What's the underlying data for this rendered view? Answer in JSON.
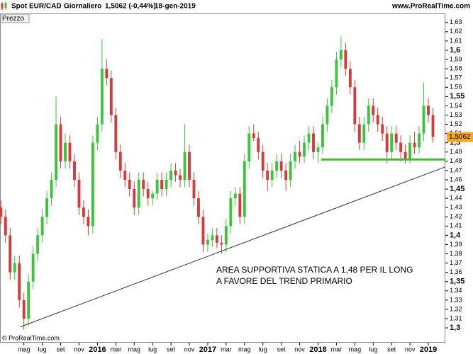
{
  "chart_data": {
    "type": "candlestick",
    "header": {
      "symbol": "Spot EUR/CAD",
      "period": "Giornaliero",
      "quote": "1,5062 (-0,44%)",
      "date": "18-gen-2019",
      "site": "www.ProRealTime.com"
    },
    "panel_label": "Prezzo",
    "copyright": "© ProRealTime.com",
    "annotation": [
      "AREA SUPPORTIVA STATICA A 1,48 PER IL LONG",
      "A FAVORE DEL TREND PRIMARIO"
    ],
    "colors": {
      "up": "#3cc43c",
      "down": "#d23c3c",
      "support": "#3cbf2c",
      "trend": "#333333",
      "tag": "#f5a623"
    },
    "last_price": {
      "value": 1.5062,
      "label": "1,5062"
    },
    "support_line": {
      "y": 1.482,
      "x_start": 32.35
    },
    "trend_line": {
      "x": [
        -0.4,
        45.85
      ],
      "y": [
        1.301,
        1.474
      ]
    },
    "xlim": [
      -2.6,
      45.85
    ],
    "xticks": [
      {
        "value": 0,
        "label": "mag"
      },
      {
        "value": 2,
        "label": "lug"
      },
      {
        "value": 4,
        "label": "set"
      },
      {
        "value": 6,
        "label": "nov"
      },
      {
        "value": 8,
        "label": "2016"
      },
      {
        "value": 10,
        "label": "mar"
      },
      {
        "value": 12,
        "label": "mag"
      },
      {
        "value": 14,
        "label": "lug"
      },
      {
        "value": 16,
        "label": "set"
      },
      {
        "value": 18,
        "label": "nov"
      },
      {
        "value": 20,
        "label": "2017"
      },
      {
        "value": 22,
        "label": "mar"
      },
      {
        "value": 24,
        "label": "mag"
      },
      {
        "value": 26,
        "label": "lug"
      },
      {
        "value": 28,
        "label": "set"
      },
      {
        "value": 30,
        "label": "nov"
      },
      {
        "value": 32,
        "label": "2018"
      },
      {
        "value": 34,
        "label": "mar"
      },
      {
        "value": 36,
        "label": "mag"
      },
      {
        "value": 38,
        "label": "lug"
      },
      {
        "value": 40,
        "label": "set"
      },
      {
        "value": 42,
        "label": "nov"
      },
      {
        "value": 44,
        "label": "2019"
      }
    ],
    "ylim": [
      1.284,
      1.639
    ],
    "yticks": [
      {
        "value": 1.3,
        "label": "1,3"
      },
      {
        "value": 1.31,
        "label": "1,31"
      },
      {
        "value": 1.32,
        "label": "1,32"
      },
      {
        "value": 1.33,
        "label": "1,33"
      },
      {
        "value": 1.34,
        "label": "1,34"
      },
      {
        "value": 1.35,
        "label": "1,35"
      },
      {
        "value": 1.36,
        "label": "1,36"
      },
      {
        "value": 1.37,
        "label": "1,37"
      },
      {
        "value": 1.38,
        "label": "1,38"
      },
      {
        "value": 1.39,
        "label": "1,39"
      },
      {
        "value": 1.4,
        "label": "1,4"
      },
      {
        "value": 1.41,
        "label": "1,41"
      },
      {
        "value": 1.42,
        "label": "1,42"
      },
      {
        "value": 1.43,
        "label": "1,43"
      },
      {
        "value": 1.44,
        "label": "1,44"
      },
      {
        "value": 1.45,
        "label": "1,45"
      },
      {
        "value": 1.46,
        "label": "1,46"
      },
      {
        "value": 1.47,
        "label": "1,47"
      },
      {
        "value": 1.48,
        "label": "1,48"
      },
      {
        "value": 1.49,
        "label": "1,49"
      },
      {
        "value": 1.5,
        "label": "1,5"
      },
      {
        "value": 1.51,
        "label": "1,51"
      },
      {
        "value": 1.52,
        "label": "1,52"
      },
      {
        "value": 1.53,
        "label": "1,53"
      },
      {
        "value": 1.54,
        "label": "1,54"
      },
      {
        "value": 1.55,
        "label": "1,55"
      },
      {
        "value": 1.56,
        "label": "1,56"
      },
      {
        "value": 1.57,
        "label": "1,57"
      },
      {
        "value": 1.58,
        "label": "1,58"
      },
      {
        "value": 1.59,
        "label": "1,59"
      },
      {
        "value": 1.6,
        "label": "1,6"
      },
      {
        "value": 1.61,
        "label": "1,61"
      },
      {
        "value": 1.62,
        "label": "1,62"
      },
      {
        "value": 1.63,
        "label": "1,63"
      }
    ],
    "x": [
      -2.5,
      -2,
      -1.5,
      -1,
      -0.5,
      0,
      0.5,
      1,
      1.5,
      2,
      2.5,
      3,
      3.5,
      4,
      4.5,
      5,
      5.5,
      6,
      6.5,
      7,
      7.5,
      8,
      8.5,
      9,
      9.5,
      10,
      10.5,
      11,
      11.5,
      12,
      12.5,
      13,
      13.5,
      14,
      14.5,
      15,
      15.5,
      16,
      16.5,
      17,
      17.5,
      18,
      18.5,
      19,
      19.5,
      20,
      20.5,
      21,
      21.5,
      22,
      22.5,
      23,
      23.5,
      24,
      24.5,
      25,
      25.5,
      26,
      26.5,
      27,
      27.5,
      28,
      28.5,
      29,
      29.5,
      30,
      30.5,
      31,
      31.5,
      32,
      32.5,
      33,
      33.5,
      34,
      34.5,
      35,
      35.5,
      36,
      36.5,
      37,
      37.5,
      38,
      38.5,
      39,
      39.5,
      40,
      40.5,
      41,
      41.5,
      42,
      42.5,
      43,
      43.5,
      44,
      44.5
    ],
    "candles": [
      [
        1.43,
        1.438,
        1.412,
        1.42
      ],
      [
        1.42,
        1.428,
        1.392,
        1.4
      ],
      [
        1.4,
        1.408,
        1.352,
        1.36
      ],
      [
        1.36,
        1.378,
        1.352,
        1.37
      ],
      [
        1.37,
        1.378,
        1.322,
        1.33
      ],
      [
        1.33,
        1.338,
        1.298,
        1.31
      ],
      [
        1.31,
        1.358,
        1.302,
        1.35
      ],
      [
        1.35,
        1.388,
        1.342,
        1.38
      ],
      [
        1.38,
        1.408,
        1.372,
        1.4
      ],
      [
        1.4,
        1.428,
        1.392,
        1.42
      ],
      [
        1.42,
        1.448,
        1.412,
        1.44
      ],
      [
        1.44,
        1.468,
        1.432,
        1.46
      ],
      [
        1.46,
        1.55,
        1.452,
        1.52
      ],
      [
        1.52,
        1.528,
        1.472,
        1.48
      ],
      [
        1.48,
        1.51,
        1.472,
        1.5
      ],
      [
        1.5,
        1.508,
        1.472,
        1.48
      ],
      [
        1.48,
        1.488,
        1.452,
        1.46
      ],
      [
        1.46,
        1.468,
        1.422,
        1.43
      ],
      [
        1.43,
        1.438,
        1.412,
        1.42
      ],
      [
        1.42,
        1.428,
        1.4,
        1.41
      ],
      [
        1.41,
        1.508,
        1.402,
        1.5
      ],
      [
        1.5,
        1.528,
        1.492,
        1.52
      ],
      [
        1.52,
        1.612,
        1.512,
        1.58
      ],
      [
        1.58,
        1.59,
        1.562,
        1.57
      ],
      [
        1.57,
        1.578,
        1.522,
        1.53
      ],
      [
        1.53,
        1.538,
        1.482,
        1.49
      ],
      [
        1.49,
        1.498,
        1.462,
        1.47
      ],
      [
        1.47,
        1.478,
        1.452,
        1.46
      ],
      [
        1.46,
        1.468,
        1.442,
        1.45
      ],
      [
        1.45,
        1.458,
        1.422,
        1.43
      ],
      [
        1.43,
        1.468,
        1.422,
        1.46
      ],
      [
        1.46,
        1.468,
        1.442,
        1.45
      ],
      [
        1.45,
        1.458,
        1.432,
        1.44
      ],
      [
        1.44,
        1.448,
        1.432,
        1.445
      ],
      [
        1.445,
        1.468,
        1.438,
        1.46
      ],
      [
        1.46,
        1.468,
        1.442,
        1.45
      ],
      [
        1.45,
        1.468,
        1.442,
        1.46
      ],
      [
        1.46,
        1.478,
        1.452,
        1.47
      ],
      [
        1.47,
        1.478,
        1.458,
        1.465
      ],
      [
        1.465,
        1.472,
        1.452,
        1.46
      ],
      [
        1.46,
        1.52,
        1.452,
        1.49
      ],
      [
        1.49,
        1.498,
        1.452,
        1.46
      ],
      [
        1.46,
        1.468,
        1.432,
        1.44
      ],
      [
        1.44,
        1.448,
        1.412,
        1.42
      ],
      [
        1.42,
        1.428,
        1.382,
        1.39
      ],
      [
        1.39,
        1.402,
        1.382,
        1.395
      ],
      [
        1.395,
        1.408,
        1.388,
        1.4
      ],
      [
        1.4,
        1.408,
        1.386,
        1.392
      ],
      [
        1.392,
        1.4,
        1.38,
        1.39
      ],
      [
        1.39,
        1.418,
        1.382,
        1.41
      ],
      [
        1.41,
        1.448,
        1.402,
        1.44
      ],
      [
        1.44,
        1.452,
        1.432,
        1.445
      ],
      [
        1.445,
        1.452,
        1.412,
        1.42
      ],
      [
        1.42,
        1.488,
        1.412,
        1.48
      ],
      [
        1.48,
        1.518,
        1.472,
        1.51
      ],
      [
        1.51,
        1.52,
        1.502,
        1.505
      ],
      [
        1.505,
        1.512,
        1.482,
        1.49
      ],
      [
        1.49,
        1.498,
        1.462,
        1.47
      ],
      [
        1.47,
        1.478,
        1.448,
        1.46
      ],
      [
        1.46,
        1.478,
        1.452,
        1.47
      ],
      [
        1.47,
        1.488,
        1.462,
        1.48
      ],
      [
        1.48,
        1.488,
        1.462,
        1.47
      ],
      [
        1.47,
        1.478,
        1.448,
        1.46
      ],
      [
        1.46,
        1.488,
        1.452,
        1.48
      ],
      [
        1.48,
        1.498,
        1.472,
        1.49
      ],
      [
        1.49,
        1.502,
        1.478,
        1.485
      ],
      [
        1.485,
        1.508,
        1.478,
        1.5
      ],
      [
        1.5,
        1.518,
        1.492,
        1.51
      ],
      [
        1.51,
        1.518,
        1.482,
        1.49
      ],
      [
        1.49,
        1.5,
        1.478,
        1.495
      ],
      [
        1.495,
        1.528,
        1.488,
        1.52
      ],
      [
        1.52,
        1.548,
        1.512,
        1.54
      ],
      [
        1.54,
        1.568,
        1.532,
        1.56
      ],
      [
        1.56,
        1.598,
        1.552,
        1.59
      ],
      [
        1.59,
        1.615,
        1.582,
        1.6
      ],
      [
        1.6,
        1.608,
        1.572,
        1.58
      ],
      [
        1.58,
        1.588,
        1.552,
        1.56
      ],
      [
        1.56,
        1.568,
        1.512,
        1.52
      ],
      [
        1.52,
        1.528,
        1.492,
        1.5
      ],
      [
        1.5,
        1.528,
        1.492,
        1.52
      ],
      [
        1.52,
        1.548,
        1.512,
        1.54
      ],
      [
        1.54,
        1.548,
        1.522,
        1.53
      ],
      [
        1.53,
        1.538,
        1.512,
        1.52
      ],
      [
        1.52,
        1.528,
        1.502,
        1.51
      ],
      [
        1.51,
        1.518,
        1.478,
        1.49
      ],
      [
        1.49,
        1.518,
        1.482,
        1.51
      ],
      [
        1.51,
        1.518,
        1.492,
        1.5
      ],
      [
        1.5,
        1.508,
        1.48,
        1.49
      ],
      [
        1.49,
        1.498,
        1.478,
        1.482
      ],
      [
        1.482,
        1.508,
        1.478,
        1.5
      ],
      [
        1.5,
        1.512,
        1.488,
        1.495
      ],
      [
        1.495,
        1.518,
        1.488,
        1.51
      ],
      [
        1.51,
        1.565,
        1.502,
        1.54
      ],
      [
        1.54,
        1.548,
        1.522,
        1.53
      ],
      [
        1.53,
        1.538,
        1.5,
        1.5062
      ]
    ]
  }
}
